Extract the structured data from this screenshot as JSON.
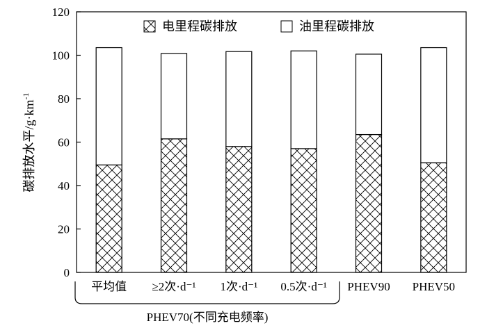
{
  "chart_data": {
    "type": "bar",
    "stacked": true,
    "categories": [
      "平均值",
      "≥2次·d⁻¹",
      "1次·d⁻¹",
      "0.5次·d⁻¹",
      "PHEV90",
      "PHEV50"
    ],
    "series": [
      {
        "name": "电里程碳排放",
        "values": [
          49.5,
          61.5,
          58.0,
          57.0,
          63.5,
          50.5
        ],
        "pattern": "crosshatch",
        "color": "#000000"
      },
      {
        "name": "油里程碳排放",
        "values": [
          54.0,
          39.3,
          43.7,
          45.0,
          37.0,
          53.0
        ],
        "pattern": "none",
        "color": "#ffffff"
      }
    ],
    "title": "",
    "xlabel": "",
    "ylabel": "碳排放水平/g·km",
    "ylabel_superscript": "-1",
    "ylim": [
      0,
      120
    ],
    "yticks": [
      0,
      20,
      40,
      60,
      80,
      100,
      120
    ],
    "grid": false,
    "legend_position": "top",
    "group_label": "PHEV70(不同充电频率)",
    "group_categories": [
      0,
      1,
      2,
      3
    ]
  }
}
